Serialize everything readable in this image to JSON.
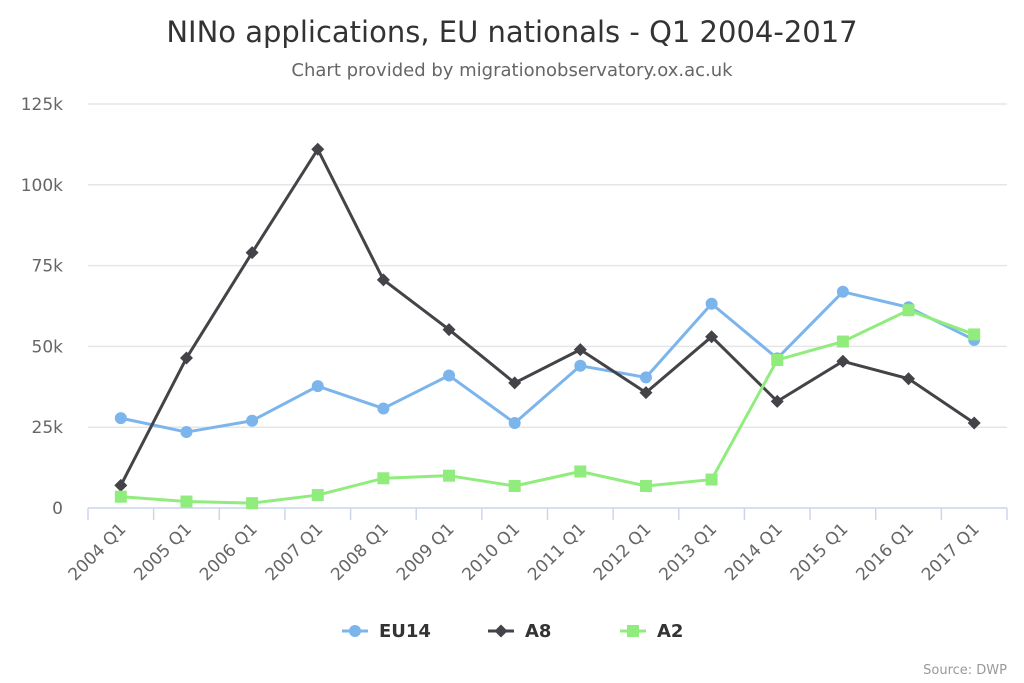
{
  "chart_data": {
    "type": "line",
    "title": "NINo applications, EU nationals - Q1 2004-2017",
    "subtitle": "Chart provided by migrationobservatory.ox.ac.uk",
    "credit": "Source: DWP",
    "categories": [
      "2004 Q1",
      "2005 Q1",
      "2006 Q1",
      "2007 Q1",
      "2008 Q1",
      "2009 Q1",
      "2010 Q1",
      "2011 Q1",
      "2012 Q1",
      "2013 Q1",
      "2014 Q1",
      "2015 Q1",
      "2016 Q1",
      "2017 Q1"
    ],
    "ylim": [
      0,
      125000
    ],
    "yticks": [
      0,
      25000,
      50000,
      75000,
      100000,
      125000
    ],
    "ytick_labels": [
      "0",
      "25k",
      "50k",
      "75k",
      "100k",
      "125k"
    ],
    "grid": true,
    "legend_position": "bottom-center",
    "series": [
      {
        "name": "EU14",
        "color": "#7cb5ec",
        "marker": "circle",
        "values": [
          27800,
          23500,
          27000,
          37700,
          30800,
          41000,
          26300,
          44000,
          40400,
          63200,
          46300,
          66900,
          62100,
          52000
        ]
      },
      {
        "name": "A8",
        "color": "#434348",
        "marker": "diamond",
        "values": [
          7000,
          46400,
          79000,
          111000,
          70600,
          55200,
          38700,
          49000,
          35700,
          53000,
          33000,
          45400,
          40000,
          26300
        ]
      },
      {
        "name": "A2",
        "color": "#90ed7d",
        "marker": "square",
        "values": [
          3500,
          2000,
          1500,
          4000,
          9200,
          10000,
          6800,
          11300,
          6800,
          8800,
          45800,
          51500,
          61200,
          53700
        ]
      }
    ]
  }
}
